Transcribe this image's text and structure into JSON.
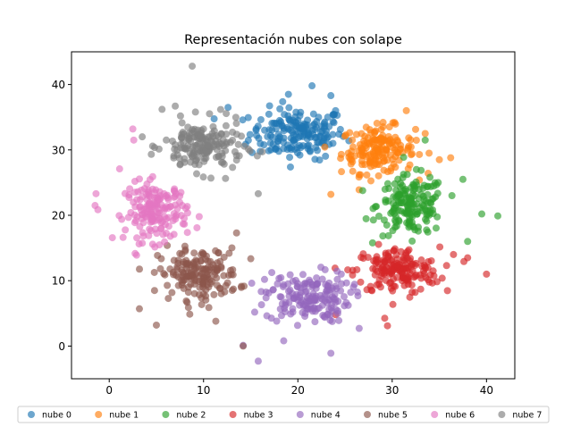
{
  "chart_data": {
    "type": "scatter",
    "title": "Representación nubes con solape",
    "xlabel": "",
    "ylabel": "",
    "xlim": [
      -4,
      43
    ],
    "ylim": [
      -5,
      45
    ],
    "xticks": [
      "0",
      "10",
      "20",
      "30",
      "40"
    ],
    "yticks": [
      "0",
      "10",
      "20",
      "30",
      "40"
    ],
    "xtick_values": [
      0,
      10,
      20,
      30,
      40
    ],
    "ytick_values": [
      0,
      10,
      20,
      30,
      40
    ],
    "grid": false,
    "legend_position": "bottom",
    "series": [
      {
        "name": "nube 0",
        "color": "#1f77b4",
        "center": [
          20.0,
          32.5
        ],
        "spread": [
          3.4,
          2.6
        ],
        "count": 180,
        "outliers": [
          [
            21.5,
            39.8
          ],
          [
            19.0,
            38.5
          ],
          [
            23.5,
            38.3
          ],
          [
            24.0,
            36.0
          ],
          [
            12.6,
            36.5
          ]
        ]
      },
      {
        "name": "nube 1",
        "color": "#ff7f0e",
        "center": [
          28.5,
          30.0
        ],
        "spread": [
          2.6,
          2.4
        ],
        "count": 170,
        "outliers": [
          [
            31.5,
            36.0
          ],
          [
            33.5,
            32.5
          ],
          [
            35.0,
            28.5
          ],
          [
            23.5,
            23.2
          ],
          [
            36.2,
            28.8
          ]
        ]
      },
      {
        "name": "nube 2",
        "color": "#2ca02c",
        "center": [
          32.0,
          21.5
        ],
        "spread": [
          2.4,
          3.0
        ],
        "count": 170,
        "outliers": [
          [
            41.2,
            19.9
          ],
          [
            39.5,
            20.2
          ],
          [
            38.0,
            16.0
          ],
          [
            37.5,
            25.5
          ],
          [
            33.5,
            31.5
          ]
        ]
      },
      {
        "name": "nube 3",
        "color": "#d62728",
        "center": [
          30.5,
          11.5
        ],
        "spread": [
          3.0,
          2.4
        ],
        "count": 170,
        "outliers": [
          [
            40.0,
            11.0
          ],
          [
            29.5,
            3.1
          ],
          [
            24.0,
            4.8
          ],
          [
            36.5,
            14.0
          ],
          [
            38.0,
            13.5
          ]
        ]
      },
      {
        "name": "nube 4",
        "color": "#9467bd",
        "center": [
          21.0,
          7.5
        ],
        "spread": [
          3.0,
          2.6
        ],
        "count": 170,
        "outliers": [
          [
            15.8,
            -2.3
          ],
          [
            23.5,
            -1.1
          ],
          [
            14.2,
            0.1
          ],
          [
            18.5,
            0.8
          ],
          [
            26.5,
            2.7
          ]
        ]
      },
      {
        "name": "nube 5",
        "color": "#8c564b",
        "center": [
          9.5,
          11.0
        ],
        "spread": [
          2.8,
          2.6
        ],
        "count": 170,
        "outliers": [
          [
            3.2,
            5.7
          ],
          [
            5.0,
            3.2
          ],
          [
            14.2,
            0.0
          ],
          [
            11.3,
            3.8
          ],
          [
            13.5,
            17.3
          ]
        ]
      },
      {
        "name": "nube 6",
        "color": "#e377c2",
        "center": [
          5.0,
          20.5
        ],
        "spread": [
          2.2,
          3.0
        ],
        "count": 170,
        "outliers": [
          [
            -1.5,
            21.5
          ],
          [
            -1.4,
            23.3
          ],
          [
            1.1,
            27.1
          ],
          [
            2.6,
            31.5
          ],
          [
            2.5,
            33.2
          ]
        ]
      },
      {
        "name": "nube 7",
        "color": "#7f7f7f",
        "center": [
          10.0,
          30.5
        ],
        "spread": [
          2.8,
          2.6
        ],
        "count": 170,
        "outliers": [
          [
            8.8,
            42.8
          ],
          [
            15.8,
            23.3
          ],
          [
            5.6,
            36.2
          ],
          [
            7.0,
            36.7
          ],
          [
            3.5,
            32.0
          ]
        ]
      }
    ]
  }
}
